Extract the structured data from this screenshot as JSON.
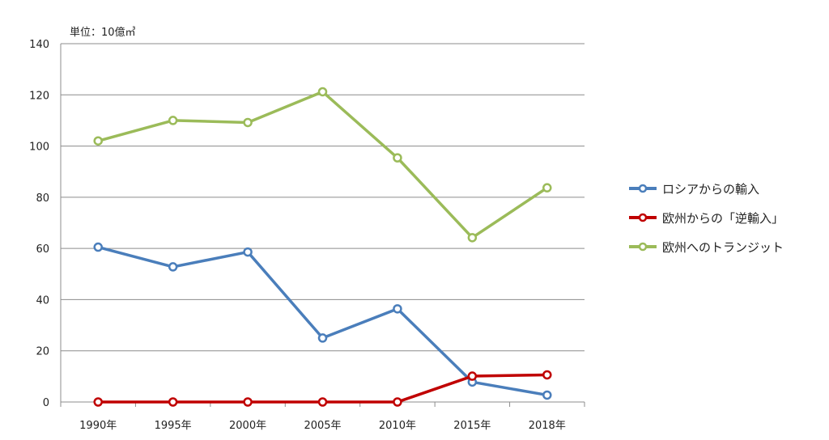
{
  "chart_data": {
    "type": "line",
    "unit_label": "単位：10億㎥",
    "categories": [
      "1990年",
      "1995年",
      "2000年",
      "2005年",
      "2010年",
      "2015年",
      "2018年"
    ],
    "ylim": [
      0,
      140
    ],
    "yticks": [
      0,
      20,
      40,
      60,
      80,
      100,
      120,
      140
    ],
    "grid": true,
    "legend_position": "right",
    "series": [
      {
        "name": "ロシアからの輸入",
        "color": "#4a7ebb",
        "values": [
          60.5,
          52.8,
          58.6,
          25.0,
          36.4,
          7.8,
          2.7
        ]
      },
      {
        "name": "欧州からの「逆輸入」",
        "color": "#c00000",
        "values": [
          0,
          0,
          0,
          0,
          0,
          10.1,
          10.6
        ]
      },
      {
        "name": "欧州へのトランジット",
        "color": "#9bbb59",
        "values": [
          102.0,
          110.0,
          109.2,
          121.2,
          95.4,
          64.2,
          83.7
        ]
      }
    ]
  }
}
